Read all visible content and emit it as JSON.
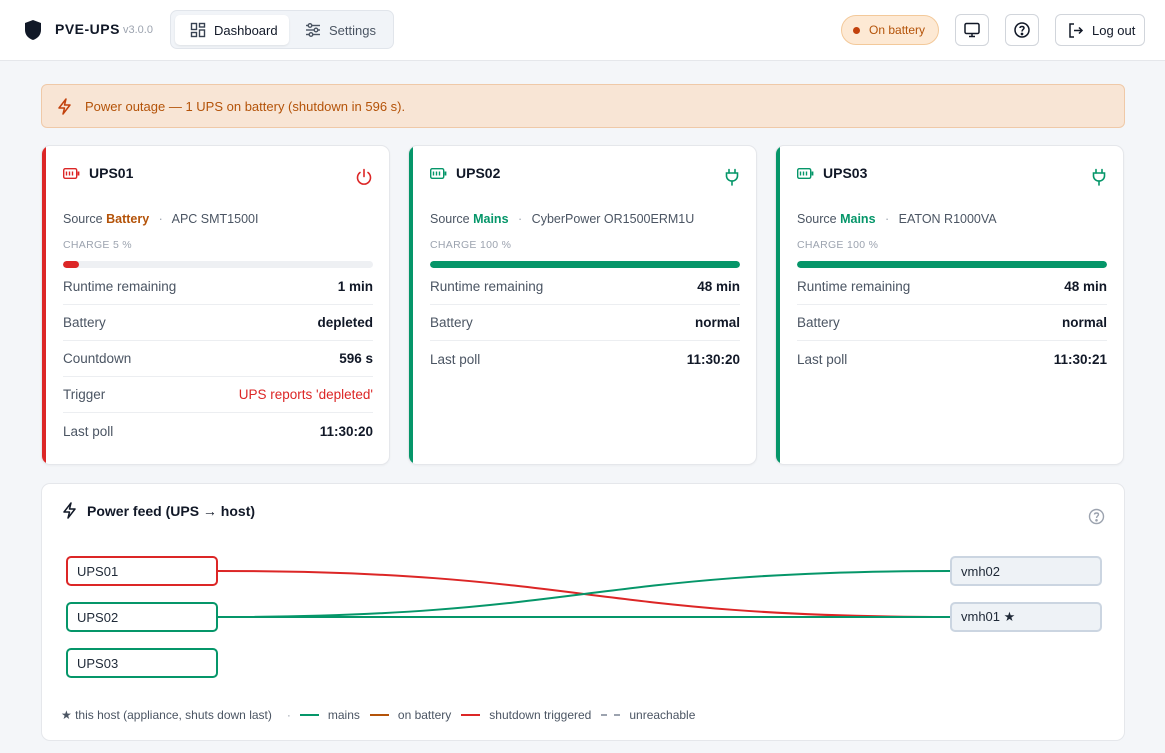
{
  "header": {
    "app_name": "PVE-UPS",
    "version": "v3.0.0",
    "tabs": [
      {
        "label": "Dashboard",
        "icon": "dashboard-icon",
        "active": true
      },
      {
        "label": "Settings",
        "icon": "sliders-icon",
        "active": false
      }
    ],
    "status_badge": "On battery",
    "logout_label": "Log out"
  },
  "alert": {
    "text": "Power outage — 1 UPS on battery (shutdown in 596 s).",
    "icon": "bolt-icon"
  },
  "ups_cards": [
    {
      "name": "UPS01",
      "source_label": "Source",
      "source": "Battery",
      "model": "APC SMT1500I",
      "charge_label": "CHARGE 5 %",
      "charge": 5,
      "state_icon": "power-icon",
      "status_color": "#dc2626",
      "rows": [
        {
          "key": "Runtime remaining",
          "value": "1 min"
        },
        {
          "key": "Battery",
          "value": "depleted"
        },
        {
          "key": "Countdown",
          "value": "596 s"
        },
        {
          "key": "Trigger",
          "value": "UPS reports 'depleted'"
        },
        {
          "key": "Last poll",
          "value": "11:30:20"
        }
      ]
    },
    {
      "name": "UPS02",
      "source_label": "Source",
      "source": "Mains",
      "model": "CyberPower OR1500ERM1U",
      "charge_label": "CHARGE 100 %",
      "charge": 100,
      "state_icon": "plug-icon",
      "status_color": "#059669",
      "rows": [
        {
          "key": "Runtime remaining",
          "value": "48 min"
        },
        {
          "key": "Battery",
          "value": "normal"
        },
        {
          "key": "Last poll",
          "value": "11:30:20"
        }
      ]
    },
    {
      "name": "UPS03",
      "source_label": "Source",
      "source": "Mains",
      "model": "EATON R1000VA",
      "charge_label": "CHARGE 100 %",
      "charge": 100,
      "state_icon": "plug-icon",
      "status_color": "#059669",
      "rows": [
        {
          "key": "Runtime remaining",
          "value": "48 min"
        },
        {
          "key": "Battery",
          "value": "normal"
        },
        {
          "key": "Last poll",
          "value": "11:30:21"
        }
      ]
    }
  ],
  "power_feed": {
    "title": "Power feed (UPS → host)",
    "ups_nodes": [
      "UPS01",
      "UPS02",
      "UPS03"
    ],
    "host_nodes": [
      "vmh02",
      "vmh01 ★"
    ],
    "links": [
      {
        "from": "UPS01",
        "to": "vmh01 ★",
        "state": "shutdown triggered"
      },
      {
        "from": "UPS02",
        "to": "vmh02",
        "state": "mains"
      },
      {
        "from": "UPS02",
        "to": "vmh01 ★",
        "state": "mains"
      }
    ],
    "legend": {
      "star_note": "★ this host (appliance, shuts down last)",
      "mains": "mains",
      "on_battery": "on battery",
      "shutdown": "shutdown triggered",
      "unreachable": "unreachable"
    }
  },
  "colors": {
    "mains": "#059669",
    "battery": "#b45309",
    "shutdown": "#dc2626",
    "unreachable": "#9ca3af"
  }
}
